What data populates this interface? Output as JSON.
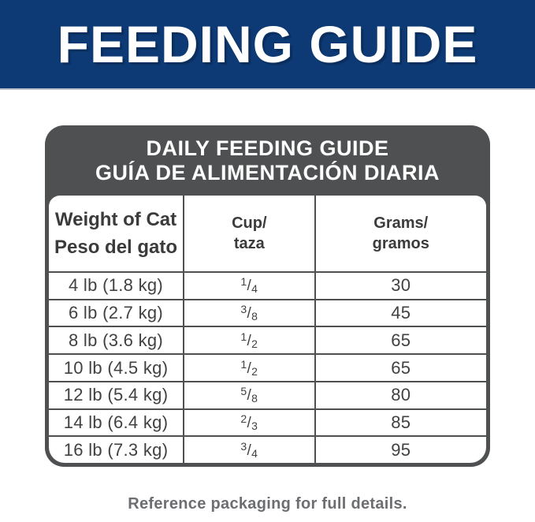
{
  "banner": {
    "title": "FEEDING GUIDE",
    "bg_color": "#0d3a74",
    "text_color": "#ffffff"
  },
  "card": {
    "bg_color": "#4f5052",
    "title_en": "DAILY FEEDING GUIDE",
    "title_es": "GUÍA DE ALIMENTACIÓN DIARIA",
    "frac_slash": "/",
    "columns": [
      {
        "line1": "Weight of Cat",
        "line2": "Peso del gato"
      },
      {
        "line1": "Cup/",
        "line2": "taza"
      },
      {
        "line1": "Grams/",
        "line2": "gramos"
      }
    ],
    "rows": [
      {
        "weight": "4 lb (1.8 kg)",
        "cup_num": "1",
        "cup_den": "4",
        "grams": "30"
      },
      {
        "weight": "6 lb (2.7 kg)",
        "cup_num": "3",
        "cup_den": "8",
        "grams": "45"
      },
      {
        "weight": "8 lb (3.6 kg)",
        "cup_num": "1",
        "cup_den": "2",
        "grams": "65"
      },
      {
        "weight": "10 lb (4.5 kg)",
        "cup_num": "1",
        "cup_den": "2",
        "grams": "65"
      },
      {
        "weight": "12 lb (5.4 kg)",
        "cup_num": "5",
        "cup_den": "8",
        "grams": "80"
      },
      {
        "weight": "14 lb (6.4 kg)",
        "cup_num": "2",
        "cup_den": "3",
        "grams": "85"
      },
      {
        "weight": "16 lb (7.3 kg)",
        "cup_num": "3",
        "cup_den": "4",
        "grams": "95"
      }
    ]
  },
  "footer": {
    "note": "Reference packaging for full details."
  }
}
